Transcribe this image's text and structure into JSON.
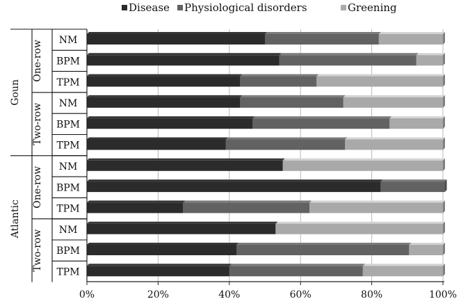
{
  "chart_data": {
    "type": "bar",
    "orientation": "horizontal",
    "stacked": "percent",
    "title": "",
    "xlabel": "",
    "ylabel": "",
    "xlim": [
      0,
      100
    ],
    "tick_labels": [
      "0%",
      "20%",
      "40%",
      "60%",
      "80%",
      "100%"
    ],
    "legend_position": "top",
    "grid": true,
    "groups": [
      {
        "cultivar": "Goun",
        "subgroups": [
          {
            "name": "One-row",
            "categories": [
              "NM",
              "BPM",
              "TPM"
            ]
          },
          {
            "name": "Two-row",
            "categories": [
              "NM",
              "BPM",
              "TPM"
            ]
          }
        ]
      },
      {
        "cultivar": "Atlantic",
        "subgroups": [
          {
            "name": "One-row",
            "categories": [
              "NM",
              "BPM",
              "TPM"
            ]
          },
          {
            "name": "Two-row",
            "categories": [
              "NM",
              "BPM",
              "TPM"
            ]
          }
        ]
      }
    ],
    "series": [
      {
        "name": "Disease",
        "color": "#2b2b2b",
        "values": [
          50,
          54,
          43,
          43,
          46.5,
          39,
          55,
          82.5,
          27,
          53,
          42,
          40
        ]
      },
      {
        "name": "Physiological disorders",
        "color": "#626262",
        "values": [
          32,
          38.5,
          21.5,
          29,
          38.5,
          33.5,
          0,
          18,
          35.5,
          0,
          48.5,
          37.5
        ]
      },
      {
        "name": "Greening",
        "color": "#a9a9a9",
        "values": [
          18,
          7.5,
          35.5,
          28,
          15,
          27.5,
          45,
          0,
          37.5,
          47,
          9.5,
          22.5
        ]
      }
    ]
  }
}
